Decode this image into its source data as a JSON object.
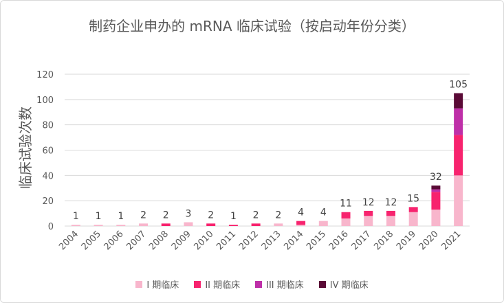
{
  "chart_data": {
    "type": "bar",
    "stacked": true,
    "title": "制药企业申办的 mRNA 临床试验（按启动年份分类）",
    "xlabel": "",
    "ylabel": "临床试验次数",
    "ylim": [
      0,
      120
    ],
    "yticks": [
      0,
      20,
      40,
      60,
      80,
      100,
      120
    ],
    "grid": true,
    "legend_position": "bottom",
    "categories": [
      "2004",
      "2005",
      "2006",
      "2007",
      "2008",
      "2009",
      "2010",
      "2011",
      "2012",
      "2013",
      "2014",
      "2015",
      "2016",
      "2017",
      "2018",
      "2019",
      "2020",
      "2021"
    ],
    "totals": [
      1,
      1,
      1,
      2,
      2,
      3,
      2,
      1,
      2,
      2,
      4,
      4,
      11,
      12,
      12,
      15,
      32,
      105
    ],
    "series": [
      {
        "name": "I 期临床",
        "color": "#f8b6cc",
        "values": [
          1,
          1,
          1,
          2,
          0,
          3,
          0,
          0,
          0,
          2,
          1,
          4,
          6,
          8,
          8,
          11,
          13,
          40
        ]
      },
      {
        "name": "II 期临床",
        "color": "#f7236e",
        "values": [
          0,
          0,
          0,
          0,
          2,
          0,
          2,
          1,
          2,
          0,
          3,
          0,
          5,
          4,
          4,
          4,
          14,
          32
        ]
      },
      {
        "name": "III 期临床",
        "color": "#be2fa8",
        "values": [
          0,
          0,
          0,
          0,
          0,
          0,
          0,
          0,
          0,
          0,
          0,
          0,
          0,
          0,
          0,
          0,
          2,
          21
        ]
      },
      {
        "name": "IV 期临床",
        "color": "#5a0a36",
        "values": [
          0,
          0,
          0,
          0,
          0,
          0,
          0,
          0,
          0,
          0,
          0,
          0,
          0,
          0,
          0,
          0,
          3,
          12
        ]
      }
    ]
  }
}
